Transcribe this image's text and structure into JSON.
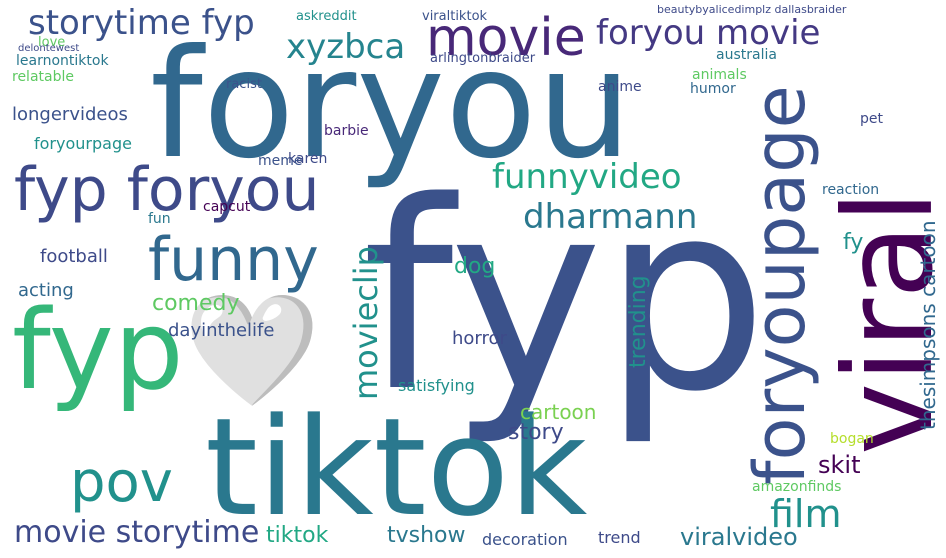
{
  "word_cloud": {
    "background": "#ffffff",
    "palette": [
      "#440154",
      "#3b528b",
      "#21918c",
      "#5ec962",
      "#fde725"
    ],
    "words": [
      "fyp",
      "foryou",
      "tiktok",
      "viral",
      "fyp🤍",
      "foryoupage",
      "funny",
      "fyp foryou",
      "pov",
      "movie",
      "storytime fyp",
      "xyzbca",
      "foryou movie",
      "funnyvideo",
      "dharmann",
      "film",
      "movieclip",
      "movie storytime",
      "viralvideo",
      "tiktok",
      "tvshow",
      "comedy",
      "skit",
      "story",
      "cartoon",
      "trending",
      "dog",
      "fy",
      "football",
      "acting",
      "dayinthelife",
      "horror",
      "satisfying",
      "trend",
      "thesimpsons cartoon",
      "decoration",
      "amazonfinds",
      "bogan",
      "relatable",
      "learnontiktok",
      "longervideos",
      "foryourpage",
      "karen",
      "barbie",
      "meme",
      "capcut",
      "fun",
      "reaction",
      "animals",
      "pet",
      "humor",
      "anime",
      "australia",
      "arlingtonbraider",
      "racist",
      "askreddit",
      "viraltiktok",
      "beautybyalicedimplz dallasbraider",
      "love",
      "delontewest"
    ]
  }
}
